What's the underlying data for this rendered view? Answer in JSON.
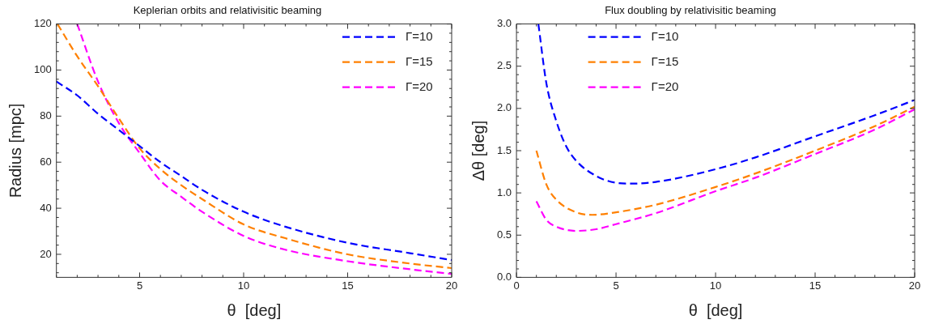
{
  "chart_data": [
    {
      "type": "line",
      "title": "Keplerian orbits and relativisitic beaming",
      "xlabel": "θ  [deg]",
      "ylabel": "Radius [mpc]",
      "xlim": [
        1,
        20
      ],
      "xticks": [
        5,
        10,
        15,
        20
      ],
      "ylim": [
        10,
        120
      ],
      "yticks": [
        20,
        40,
        60,
        80,
        100,
        120
      ],
      "grid": false,
      "legend": "top right",
      "marker": "none",
      "line_style": "dashed",
      "series": [
        {
          "name": "Γ=10",
          "color": "#0000ff",
          "x": [
            1,
            2,
            3,
            4,
            5,
            6,
            7,
            8,
            10,
            12,
            15,
            18,
            20
          ],
          "values": [
            95,
            89,
            81,
            74,
            67,
            60,
            54,
            48,
            38.5,
            32,
            25,
            20.5,
            17.5
          ]
        },
        {
          "name": "Γ=15",
          "color": "#ff8000",
          "x": [
            1.05,
            2,
            3,
            4,
            5,
            6,
            7,
            8,
            10,
            12,
            15,
            18,
            20
          ],
          "values": [
            120,
            106,
            93,
            79,
            66,
            57,
            50,
            44,
            33,
            27,
            20,
            16,
            14
          ]
        },
        {
          "name": "Γ=20",
          "color": "#ff00ff",
          "x": [
            2,
            3,
            4,
            5,
            6,
            7,
            8,
            10,
            12,
            15,
            18,
            20
          ],
          "values": [
            120,
            95,
            77,
            64,
            52,
            45,
            38.5,
            28,
            22,
            17,
            13.5,
            11.5
          ]
        }
      ]
    },
    {
      "type": "line",
      "title": "Flux doubling by relativisitic beaming",
      "xlabel": "θ  [deg]",
      "ylabel": "Δθ [deg]",
      "xlim": [
        0,
        20
      ],
      "xticks": [
        0,
        5,
        10,
        15,
        20
      ],
      "ylim": [
        0,
        3
      ],
      "yticks": [
        {
          "value": 0,
          "label": "0.0"
        },
        {
          "value": 0.5,
          "label": "0.5"
        },
        {
          "value": 1,
          "label": "1.0"
        },
        {
          "value": 1.5,
          "label": "1.5"
        },
        {
          "value": 2,
          "label": "2.0"
        },
        {
          "value": 2.5,
          "label": "2.5"
        },
        {
          "value": 3,
          "label": "3.0"
        }
      ],
      "grid": false,
      "legend": "top",
      "marker": "none",
      "line_style": "dashed",
      "series": [
        {
          "name": "Γ=10",
          "color": "#0000ff",
          "x": [
            1.1,
            1.5,
            2,
            2.5,
            3,
            4,
            5,
            5.8,
            7,
            8,
            10,
            12,
            15,
            18,
            20
          ],
          "values": [
            3,
            2.3,
            1.85,
            1.55,
            1.38,
            1.2,
            1.12,
            1.11,
            1.13,
            1.17,
            1.28,
            1.42,
            1.67,
            1.92,
            2.1
          ]
        },
        {
          "name": "Γ=15",
          "color": "#ff8000",
          "x": [
            1,
            1.5,
            2,
            3,
            3.8,
            5,
            7,
            10,
            12,
            15,
            18,
            20
          ],
          "values": [
            1.5,
            1.1,
            0.92,
            0.77,
            0.74,
            0.77,
            0.86,
            1.07,
            1.23,
            1.5,
            1.79,
            2.02
          ]
        },
        {
          "name": "Γ=20",
          "color": "#ff00ff",
          "x": [
            1,
            1.5,
            2,
            3,
            4,
            5,
            7,
            10,
            12,
            15,
            18,
            20
          ],
          "values": [
            0.9,
            0.68,
            0.6,
            0.55,
            0.57,
            0.63,
            0.76,
            1.02,
            1.18,
            1.46,
            1.75,
            1.99
          ]
        }
      ]
    }
  ]
}
